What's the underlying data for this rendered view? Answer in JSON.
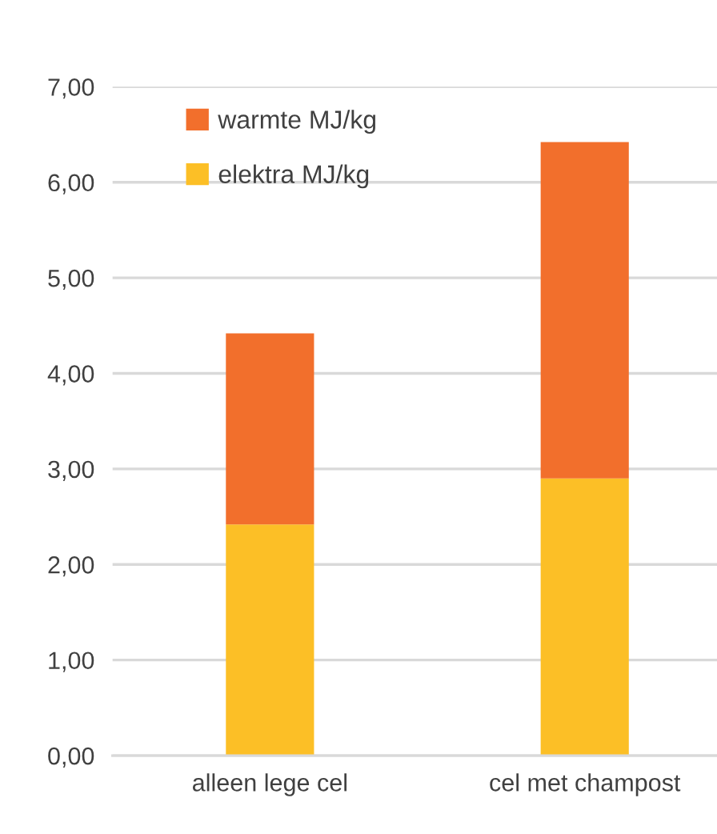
{
  "chart_data": {
    "type": "bar",
    "stacked": true,
    "categories": [
      "alleen lege cel",
      "cel met champost"
    ],
    "series": [
      {
        "name": "elektra MJ/kg",
        "color": "#fcbf26",
        "values": [
          2.42,
          2.9
        ]
      },
      {
        "name": "warmte MJ/kg",
        "color": "#f26f2c",
        "values": [
          2.0,
          3.52
        ]
      }
    ],
    "ylim": [
      0,
      7
    ],
    "yticks": [
      {
        "value": 0,
        "label": "0,00"
      },
      {
        "value": 1,
        "label": "1,00"
      },
      {
        "value": 2,
        "label": "2,00"
      },
      {
        "value": 3,
        "label": "3,00"
      },
      {
        "value": 4,
        "label": "4,00"
      },
      {
        "value": 5,
        "label": "5,00"
      },
      {
        "value": 6,
        "label": "6,00"
      },
      {
        "value": 7,
        "label": "7,00"
      }
    ],
    "grid": "y",
    "legend": "top left"
  }
}
